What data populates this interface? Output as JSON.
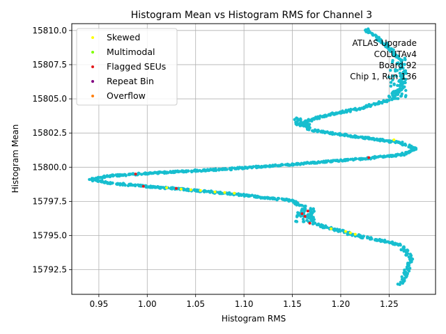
{
  "chart_data": {
    "type": "scatter",
    "title": "Histogram Mean vs Histogram RMS for Channel 3",
    "xlabel": "Histogram RMS",
    "ylabel": "Histogram Mean",
    "xlim": [
      0.922,
      1.298
    ],
    "ylim": [
      15790.7,
      15810.5
    ],
    "xticks": [
      0.95,
      1.0,
      1.05,
      1.1,
      1.15,
      1.2,
      1.25
    ],
    "xtick_labels": [
      "0.95",
      "1.00",
      "1.05",
      "1.10",
      "1.15",
      "1.20",
      "1.25"
    ],
    "yticks": [
      15792.5,
      15795.0,
      15797.5,
      15800.0,
      15802.5,
      15805.0,
      15807.5,
      15810.0
    ],
    "ytick_labels": [
      "15792.5",
      "15795.0",
      "15797.5",
      "15800.0",
      "15802.5",
      "15805.0",
      "15807.5",
      "15810.0"
    ],
    "grid": true,
    "legend_position": "top-left",
    "annotation": [
      "ATLAS Upgrade",
      "COLUTAv4",
      "Board 92",
      "Chip 1, Run 136"
    ],
    "annotation_position": "top-right",
    "main_series_color": "#17becf",
    "trace_path": [
      [
        1.262,
        15791.4
      ],
      [
        1.268,
        15792.4
      ],
      [
        1.272,
        15793.4
      ],
      [
        1.262,
        15794.3
      ],
      [
        1.22,
        15794.95
      ],
      [
        1.19,
        15795.5
      ],
      [
        1.172,
        15795.9
      ],
      [
        1.162,
        15796.6
      ],
      [
        1.162,
        15797.1
      ],
      [
        1.15,
        15797.55
      ],
      [
        1.1,
        15797.95
      ],
      [
        1.05,
        15798.3
      ],
      [
        1.0,
        15798.6
      ],
      [
        0.96,
        15798.85
      ],
      [
        0.942,
        15799.1
      ],
      [
        0.96,
        15799.35
      ],
      [
        1.0,
        15799.55
      ],
      [
        1.08,
        15799.85
      ],
      [
        1.15,
        15800.2
      ],
      [
        1.22,
        15800.6
      ],
      [
        1.262,
        15800.9
      ],
      [
        1.278,
        15801.3
      ],
      [
        1.26,
        15801.8
      ],
      [
        1.21,
        15802.3
      ],
      [
        1.17,
        15802.7
      ],
      [
        1.158,
        15803.2
      ],
      [
        1.18,
        15803.7
      ],
      [
        1.22,
        15804.3
      ],
      [
        1.25,
        15804.9
      ],
      [
        1.262,
        15805.8
      ],
      [
        1.265,
        15806.8
      ],
      [
        1.262,
        15807.8
      ],
      [
        1.25,
        15808.8
      ],
      [
        1.235,
        15809.6
      ],
      [
        1.225,
        15810.1
      ]
    ],
    "series": [
      {
        "name": "Skewed",
        "color": "#ffff00",
        "points": [
          [
            1.02,
            15798.5
          ],
          [
            1.035,
            15798.4
          ],
          [
            1.045,
            15798.35
          ],
          [
            1.055,
            15798.3
          ],
          [
            1.07,
            15798.2
          ],
          [
            1.08,
            15798.15
          ],
          [
            1.09,
            15798.1
          ],
          [
            1.19,
            15795.5
          ],
          [
            1.205,
            15795.3
          ],
          [
            1.21,
            15795.2
          ],
          [
            1.215,
            15795.1
          ],
          [
            1.255,
            15802.0
          ]
        ]
      },
      {
        "name": "Multimodal",
        "color": "#7fff00",
        "points": []
      },
      {
        "name": "Flagged SEUs",
        "color": "#e31a1c",
        "points": [
          [
            0.988,
            15799.5
          ],
          [
            0.996,
            15798.6
          ],
          [
            1.03,
            15798.45
          ],
          [
            1.16,
            15796.6
          ],
          [
            1.163,
            15796.4
          ],
          [
            1.166,
            15796.8
          ],
          [
            1.168,
            15795.9
          ],
          [
            1.229,
            15800.7
          ]
        ]
      },
      {
        "name": "Repeat Bin",
        "color": "#800080",
        "points": []
      },
      {
        "name": "Overflow",
        "color": "#ff7f0e",
        "points": []
      }
    ]
  }
}
